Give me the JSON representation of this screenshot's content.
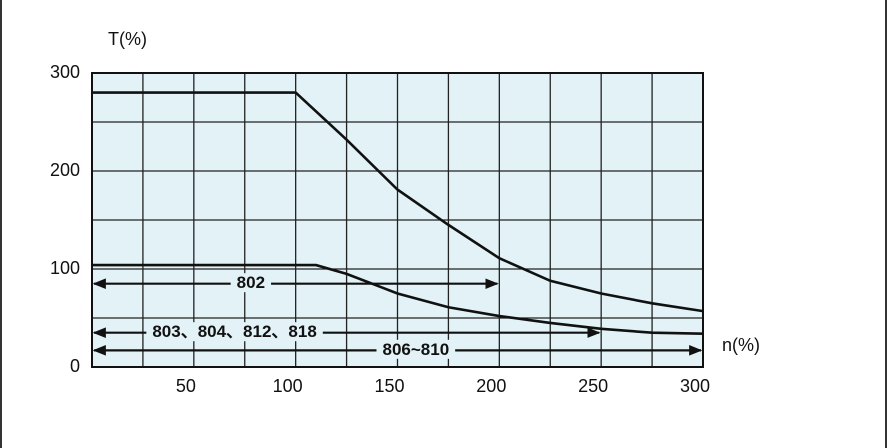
{
  "chart_data": {
    "type": "line",
    "y_label": "T(%)",
    "x_label": "n(%)",
    "xlim": [
      0,
      300
    ],
    "ylim": [
      0,
      300
    ],
    "xticks": [
      50,
      100,
      150,
      200,
      250,
      300
    ],
    "yticks": [
      0,
      100,
      200,
      300
    ],
    "xgrid": [
      25,
      50,
      75,
      100,
      125,
      150,
      175,
      200,
      225,
      250,
      275
    ],
    "ygrid": [
      50,
      100,
      150,
      200,
      250
    ],
    "series": [
      {
        "color": "#111111",
        "x": [
          0,
          100,
          125,
          150,
          175,
          200,
          225,
          250,
          275,
          300
        ],
        "values": [
          280,
          280,
          232,
          181,
          145,
          111,
          88,
          75,
          65,
          57
        ]
      },
      {
        "color": "#111111",
        "x": [
          0,
          110,
          125,
          150,
          175,
          200,
          225,
          250,
          275,
          300
        ],
        "values": [
          104,
          104,
          95,
          75,
          61,
          52,
          45,
          39,
          35,
          34
        ]
      }
    ],
    "ranges": [
      {
        "label": "802",
        "x": [
          0,
          200
        ],
        "y": 85
      },
      {
        "label": "803、804、812、818",
        "x": [
          0,
          250
        ],
        "y": 35
      },
      {
        "label": "806~810",
        "x": [
          0,
          300
        ],
        "y": 17
      }
    ]
  }
}
